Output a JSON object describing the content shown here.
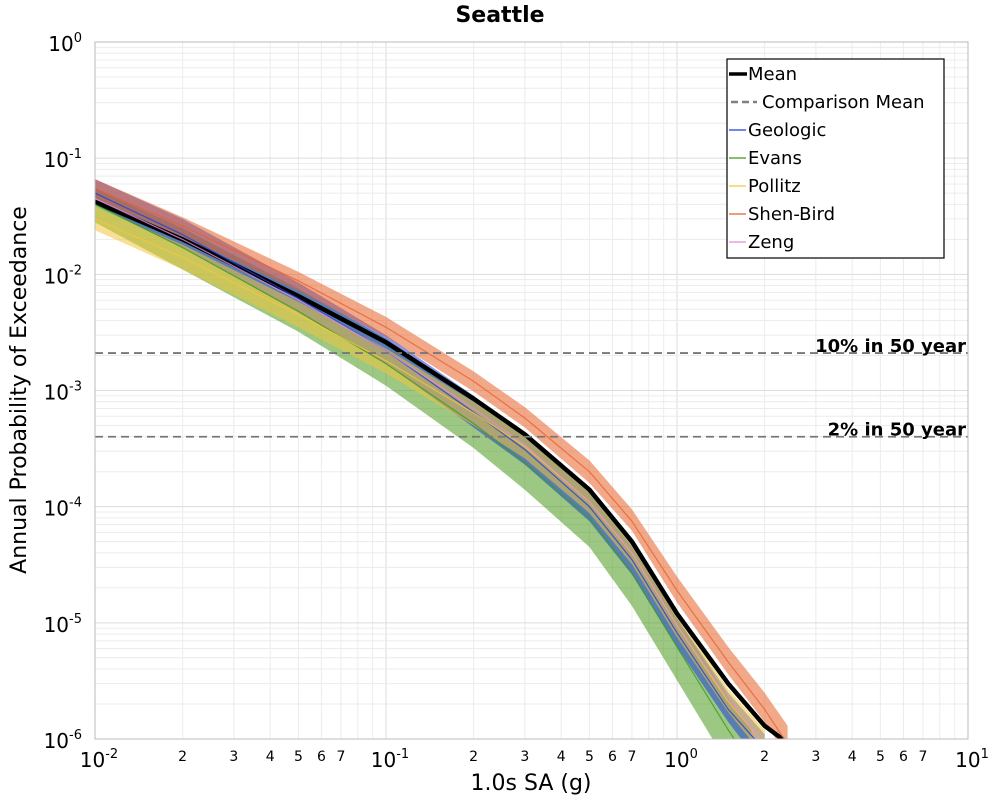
{
  "chart_data": {
    "type": "line",
    "title": "Seattle",
    "xlabel": "1.0s SA (g)",
    "ylabel": "Annual Probability of Exceedance",
    "xscale": "log",
    "yscale": "log",
    "xlim": [
      0.01,
      10
    ],
    "ylim": [
      1e-06,
      1
    ],
    "grid": true,
    "legend_position": "top-right",
    "x_major_ticks": [
      {
        "base": "10",
        "exp": "-2"
      },
      {
        "base": "10",
        "exp": "-1"
      },
      {
        "base": "10",
        "exp": "0"
      },
      {
        "base": "10",
        "exp": "1"
      }
    ],
    "x_minor_tick_labels": [
      "2",
      "3",
      "4",
      "5",
      "6",
      "7"
    ],
    "y_major_ticks": [
      {
        "base": "10",
        "exp": "0"
      },
      {
        "base": "10",
        "exp": "-1"
      },
      {
        "base": "10",
        "exp": "-2"
      },
      {
        "base": "10",
        "exp": "-3"
      },
      {
        "base": "10",
        "exp": "-4"
      },
      {
        "base": "10",
        "exp": "-5"
      },
      {
        "base": "10",
        "exp": "-6"
      }
    ],
    "reference_lines": [
      {
        "label": "10% in 50 year",
        "y": 0.0021
      },
      {
        "label": "2% in 50 year",
        "y": 0.0004
      }
    ],
    "series": [
      {
        "name": "Mean",
        "color": "#000000",
        "style": "solid",
        "x": [
          0.01,
          0.02,
          0.05,
          0.1,
          0.2,
          0.3,
          0.5,
          0.7,
          1.0,
          1.5,
          2.0,
          2.3
        ],
        "y": [
          0.042,
          0.02,
          0.0065,
          0.0026,
          0.00085,
          0.00042,
          0.00014,
          5e-05,
          1.2e-05,
          3e-06,
          1.3e-06,
          1e-06
        ]
      },
      {
        "name": "Comparison Mean",
        "color": "#808080",
        "style": "dashed",
        "x": [],
        "y": []
      },
      {
        "name": "Geologic",
        "color": "#1f3fd8",
        "style": "solid",
        "x": [
          0.01,
          0.02,
          0.05,
          0.1,
          0.2,
          0.3,
          0.5,
          0.7,
          1.0,
          1.5,
          2.0
        ],
        "y": [
          0.05,
          0.022,
          0.0062,
          0.0022,
          0.00065,
          0.00031,
          0.0001,
          3.5e-05,
          8.2e-06,
          1.8e-06,
          8e-07
        ]
      },
      {
        "name": "Evans",
        "color": "#3c9a1c",
        "style": "solid",
        "x": [
          0.01,
          0.02,
          0.05,
          0.1,
          0.2,
          0.3,
          0.5,
          0.7,
          1.0,
          1.5,
          1.8
        ],
        "y": [
          0.04,
          0.017,
          0.0048,
          0.0017,
          0.00052,
          0.00024,
          8e-05,
          2.7e-05,
          6.2e-06,
          1.2e-06,
          6e-07
        ]
      },
      {
        "name": "Pollitz",
        "color": "#f2c53d",
        "style": "solid",
        "x": [
          0.01,
          0.02,
          0.05,
          0.1,
          0.2,
          0.3,
          0.5,
          0.7,
          1.0,
          1.5,
          2.0
        ],
        "y": [
          0.03,
          0.014,
          0.0045,
          0.0018,
          0.00064,
          0.00033,
          0.00011,
          4e-05,
          9.5e-06,
          2.1e-06,
          9e-07
        ]
      },
      {
        "name": "Shen-Bird",
        "color": "#e8622a",
        "style": "solid",
        "x": [
          0.01,
          0.02,
          0.05,
          0.1,
          0.2,
          0.3,
          0.5,
          0.7,
          1.0,
          1.5,
          2.0,
          2.4
        ],
        "y": [
          0.055,
          0.026,
          0.0088,
          0.0035,
          0.0012,
          0.00058,
          0.0002,
          7.5e-05,
          1.9e-05,
          4.6e-06,
          1.8e-06,
          9e-07
        ]
      },
      {
        "name": "Zeng",
        "color": "#e88ad8",
        "style": "solid",
        "x": [
          0.01,
          0.02,
          0.05,
          0.1,
          0.2,
          0.3,
          0.5,
          0.7,
          1.0,
          1.5,
          2.0
        ],
        "y": [
          0.045,
          0.02,
          0.006,
          0.0022,
          0.0007,
          0.00034,
          0.00011,
          4e-05,
          9.5e-06,
          2.2e-06,
          9e-07
        ]
      }
    ],
    "bands": [
      {
        "series": "Evans",
        "color": "#4a9a1e",
        "x": [
          0.01,
          0.02,
          0.05,
          0.1,
          0.2,
          0.3,
          0.5,
          0.7,
          1.0,
          1.5,
          1.8
        ],
        "lower": [
          0.028,
          0.011,
          0.0032,
          0.0011,
          0.00032,
          0.00014,
          4.5e-05,
          1.4e-05,
          3.2e-06,
          6e-07,
          2e-07
        ],
        "upper": [
          0.055,
          0.025,
          0.0075,
          0.0028,
          0.00085,
          0.0004,
          0.00013,
          4.5e-05,
          1.1e-05,
          2.3e-06,
          1.2e-06
        ]
      },
      {
        "series": "Geologic",
        "color": "#1f3fd8",
        "x": [
          0.01,
          0.02,
          0.05,
          0.1,
          0.2,
          0.3,
          0.5,
          0.7,
          1.0,
          1.5,
          2.0
        ],
        "lower": [
          0.04,
          0.017,
          0.0047,
          0.0017,
          0.00048,
          0.00023,
          7.5e-05,
          2.6e-05,
          6.2e-06,
          1.4e-06,
          5.5e-07
        ],
        "upper": [
          0.066,
          0.03,
          0.0085,
          0.003,
          0.0009,
          0.00043,
          0.00014,
          4.8e-05,
          1.1e-05,
          2.5e-06,
          1.1e-06
        ]
      },
      {
        "series": "Pollitz",
        "color": "#f2c53d",
        "x": [
          0.01,
          0.02,
          0.05,
          0.1,
          0.2,
          0.3,
          0.5,
          0.7,
          1.0,
          1.5,
          2.0
        ],
        "lower": [
          0.024,
          0.011,
          0.0035,
          0.0014,
          0.0005,
          0.00026,
          8.8e-05,
          3.2e-05,
          7.5e-06,
          1.7e-06,
          7e-07
        ],
        "upper": [
          0.038,
          0.018,
          0.0058,
          0.0023,
          0.0008,
          0.00041,
          0.000135,
          5e-05,
          1.2e-05,
          2.7e-06,
          1.2e-06
        ]
      },
      {
        "series": "Shen-Bird",
        "color": "#e8622a",
        "x": [
          0.01,
          0.02,
          0.05,
          0.1,
          0.2,
          0.3,
          0.5,
          0.7,
          1.0,
          1.5,
          2.0,
          2.4
        ],
        "lower": [
          0.045,
          0.021,
          0.0072,
          0.0029,
          0.00098,
          0.00048,
          0.00016,
          6.2e-05,
          1.5e-05,
          3.6e-06,
          1.4e-06,
          7e-07
        ],
        "upper": [
          0.066,
          0.031,
          0.0105,
          0.0043,
          0.00146,
          0.00072,
          0.00025,
          9.5e-05,
          2.5e-05,
          6.2e-06,
          2.5e-06,
          1.3e-06
        ]
      }
    ]
  }
}
